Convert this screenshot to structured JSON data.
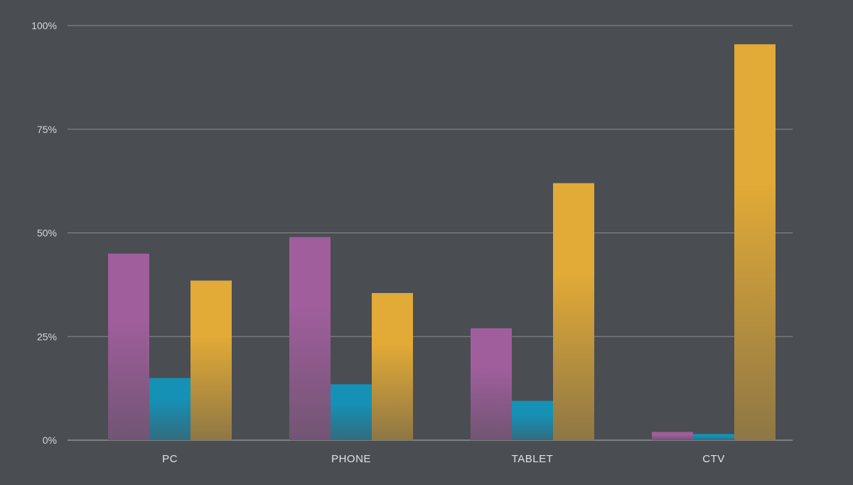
{
  "chart_data": {
    "type": "bar",
    "title": "",
    "xlabel": "",
    "ylabel": "",
    "categories": [
      "PC",
      "PHONE",
      "TABLET",
      "CTV"
    ],
    "series": [
      {
        "values": [
          45,
          49,
          27,
          2
        ],
        "color": "#a05e9c"
      },
      {
        "values": [
          15,
          13.5,
          9.5,
          1.5
        ],
        "color": "#1591b5"
      },
      {
        "values": [
          38.5,
          35.5,
          62,
          95.5
        ],
        "color": "#e2aa36"
      }
    ],
    "ylim": [
      0,
      100
    ],
    "yticks": [
      0,
      25,
      50,
      75,
      100
    ],
    "ytick_labels": [
      "0%",
      "25%",
      "50%",
      "75%",
      "100%"
    ],
    "grid": true,
    "legend": "none",
    "colors": {
      "background": "#4a4d52",
      "gridline": "#8a8c90",
      "tick_text": "#d6d7d9"
    }
  }
}
